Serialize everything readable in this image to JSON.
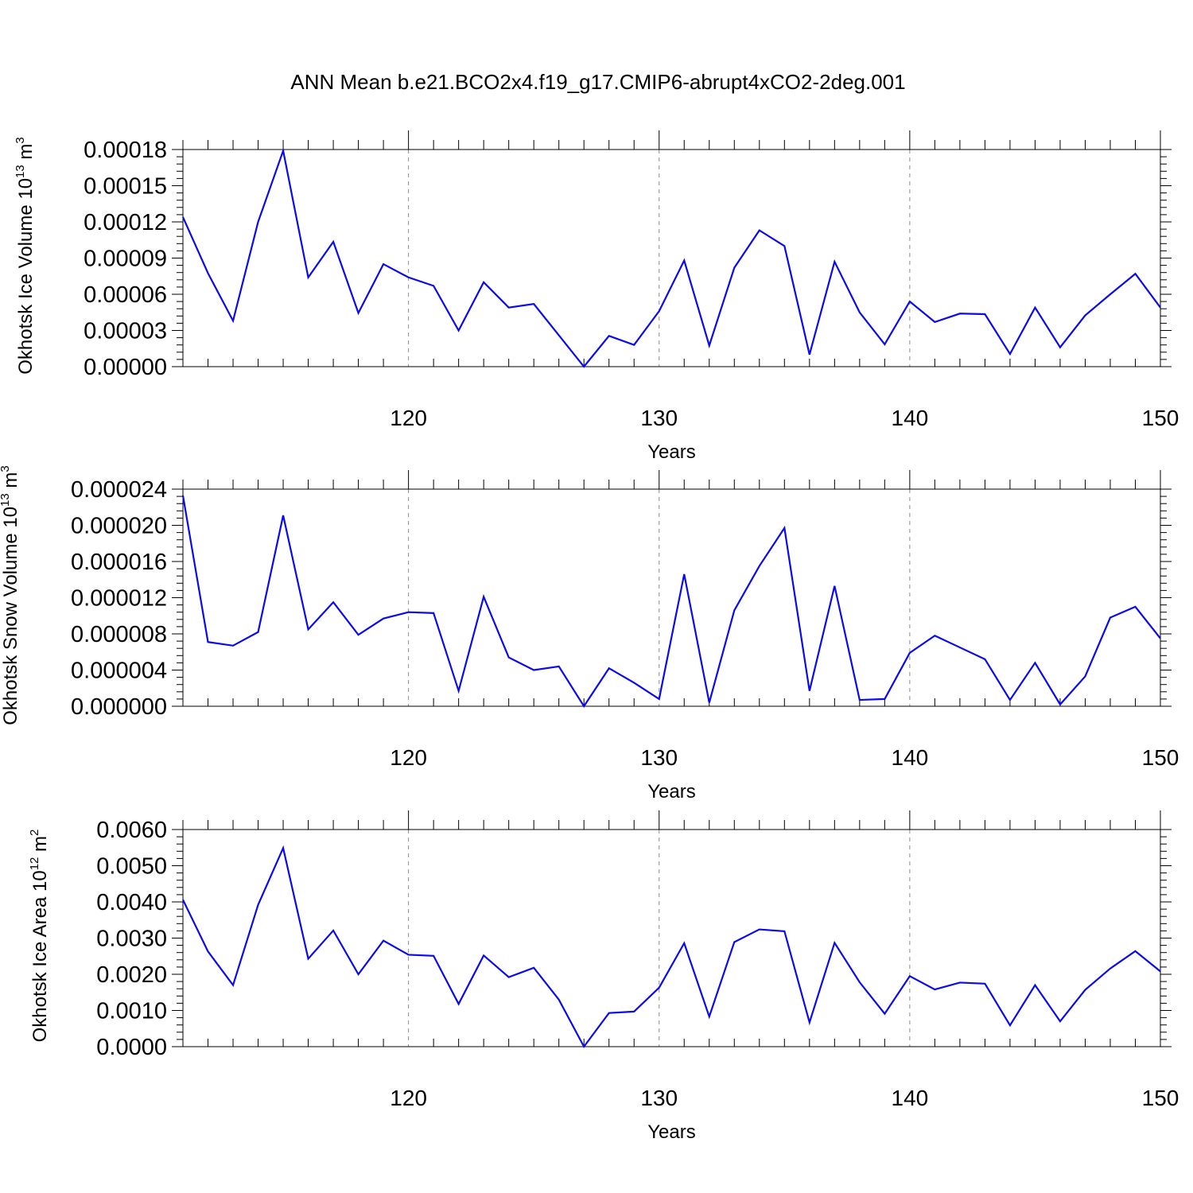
{
  "page": {
    "title": "ANN Mean b.e21.BCO2x4.f19_g17.CMIP6-abrupt4xCO2-2deg.001"
  },
  "colors": {
    "series": "#0a0aee",
    "grid": "#8c8c8c",
    "axis": "#000000",
    "background": "#ffffff"
  },
  "chart_data": [
    {
      "type": "line",
      "ylabel_main": "Okhotsk Ice Volume 10",
      "ylabel_exp": "13",
      "ylabel_unit": " m",
      "ylabel_unit_exp": "3",
      "xlabel": "Years",
      "xlim": [
        111,
        150
      ],
      "ylim": [
        0,
        0.00018
      ],
      "yticks": [
        0,
        3e-05,
        6e-05,
        9e-05,
        0.00012,
        0.00015,
        0.00018
      ],
      "ytick_labels": [
        "0.00000",
        "0.00003",
        "0.00006",
        "0.00009",
        "0.00012",
        "0.00015",
        "0.00018"
      ],
      "xticks": [
        120,
        130,
        140,
        150
      ],
      "xtick_labels": [
        "120",
        "130",
        "140",
        "150"
      ],
      "grid": "vertical dashed at major x ticks",
      "x": [
        111,
        112,
        113,
        114,
        115,
        116,
        117,
        118,
        119,
        120,
        121,
        122,
        123,
        124,
        125,
        126,
        127,
        128,
        129,
        130,
        131,
        132,
        133,
        134,
        135,
        136,
        137,
        138,
        139,
        140,
        141,
        142,
        143,
        144,
        145,
        146,
        147,
        148,
        149,
        150
      ],
      "values": [
        0.000124,
        7.75e-05,
        3.8e-05,
        0.00012,
        0.000179,
        7.4e-05,
        0.0001035,
        4.45e-05,
        8.5e-05,
        7.4e-05,
        6.7e-05,
        3e-05,
        7e-05,
        4.9e-05,
        5.2e-05,
        2.6e-05,
        0.0,
        2.55e-05,
        1.8e-05,
        4.6e-05,
        8.8e-05,
        1.75e-05,
        8.2e-05,
        0.000113,
        0.0001,
        1e-05,
        8.7e-05,
        4.5e-05,
        1.85e-05,
        5.4e-05,
        3.7e-05,
        4.4e-05,
        4.35e-05,
        1.05e-05,
        4.9e-05,
        1.6e-05,
        4.25e-05,
        6e-05,
        7.7e-05,
        4.9e-05
      ]
    },
    {
      "type": "line",
      "ylabel_main": "Okhotsk Snow Volume 10",
      "ylabel_exp": "13",
      "ylabel_unit": " m",
      "ylabel_unit_exp": "3",
      "xlabel": "Years",
      "xlim": [
        111,
        150
      ],
      "ylim": [
        0,
        2.4e-05
      ],
      "yticks": [
        0,
        4e-06,
        8e-06,
        1.2e-05,
        1.6e-05,
        2e-05,
        2.4e-05
      ],
      "ytick_labels": [
        "0.000000",
        "0.000004",
        "0.000008",
        "0.000012",
        "0.000016",
        "0.000020",
        "0.000024"
      ],
      "xticks": [
        120,
        130,
        140,
        150
      ],
      "xtick_labels": [
        "120",
        "130",
        "140",
        "150"
      ],
      "grid": "vertical dashed at major x ticks",
      "x": [
        111,
        112,
        113,
        114,
        115,
        116,
        117,
        118,
        119,
        120,
        121,
        122,
        123,
        124,
        125,
        126,
        127,
        128,
        129,
        130,
        131,
        132,
        133,
        134,
        135,
        136,
        137,
        138,
        139,
        140,
        141,
        142,
        143,
        144,
        145,
        146,
        147,
        148,
        149,
        150
      ],
      "values": [
        2.33e-05,
        7.1e-06,
        6.7e-06,
        8.2e-06,
        2.11e-05,
        8.5e-06,
        1.15e-05,
        7.9e-06,
        9.7e-06,
        1.04e-05,
        1.03e-05,
        1.7e-06,
        1.21e-05,
        5.4e-06,
        4e-06,
        4.4e-06,
        0.0,
        4.2e-06,
        2.6e-06,
        8e-07,
        1.46e-05,
        4e-07,
        1.06e-05,
        1.55e-05,
        1.97e-05,
        1.7e-06,
        1.33e-05,
        7e-07,
        8e-07,
        5.9e-06,
        7.8e-06,
        6.5e-06,
        5.2e-06,
        7e-07,
        4.8e-06,
        2e-07,
        3.3e-06,
        9.8e-06,
        1.1e-05,
        7.5e-06
      ]
    },
    {
      "type": "line",
      "ylabel_main": "Okhotsk Ice Area 10",
      "ylabel_exp": "12",
      "ylabel_unit": " m",
      "ylabel_unit_exp": "2",
      "xlabel": "Years",
      "xlim": [
        111,
        150
      ],
      "ylim": [
        0,
        0.006
      ],
      "yticks": [
        0,
        0.001,
        0.002,
        0.003,
        0.004,
        0.005,
        0.006
      ],
      "ytick_labels": [
        "0.0000",
        "0.0010",
        "0.0020",
        "0.0030",
        "0.0040",
        "0.0050",
        "0.0060"
      ],
      "xticks": [
        120,
        130,
        140,
        150
      ],
      "xtick_labels": [
        "120",
        "130",
        "140",
        "150"
      ],
      "grid": "vertical dashed at major x ticks",
      "x": [
        111,
        112,
        113,
        114,
        115,
        116,
        117,
        118,
        119,
        120,
        121,
        122,
        123,
        124,
        125,
        126,
        127,
        128,
        129,
        130,
        131,
        132,
        133,
        134,
        135,
        136,
        137,
        138,
        139,
        140,
        141,
        142,
        143,
        144,
        145,
        146,
        147,
        148,
        149,
        150
      ],
      "values": [
        0.00406,
        0.00263,
        0.0017,
        0.00392,
        0.00549,
        0.00243,
        0.00321,
        0.002,
        0.00293,
        0.00254,
        0.00251,
        0.00118,
        0.00252,
        0.00192,
        0.00218,
        0.0013,
        0.0,
        0.00093,
        0.00097,
        0.00163,
        0.00286,
        0.00083,
        0.00289,
        0.00324,
        0.00319,
        0.00067,
        0.00287,
        0.00178,
        0.00091,
        0.00195,
        0.00158,
        0.00177,
        0.00174,
        0.00059,
        0.0017,
        0.0007,
        0.00157,
        0.00216,
        0.00264,
        0.00208
      ]
    }
  ]
}
